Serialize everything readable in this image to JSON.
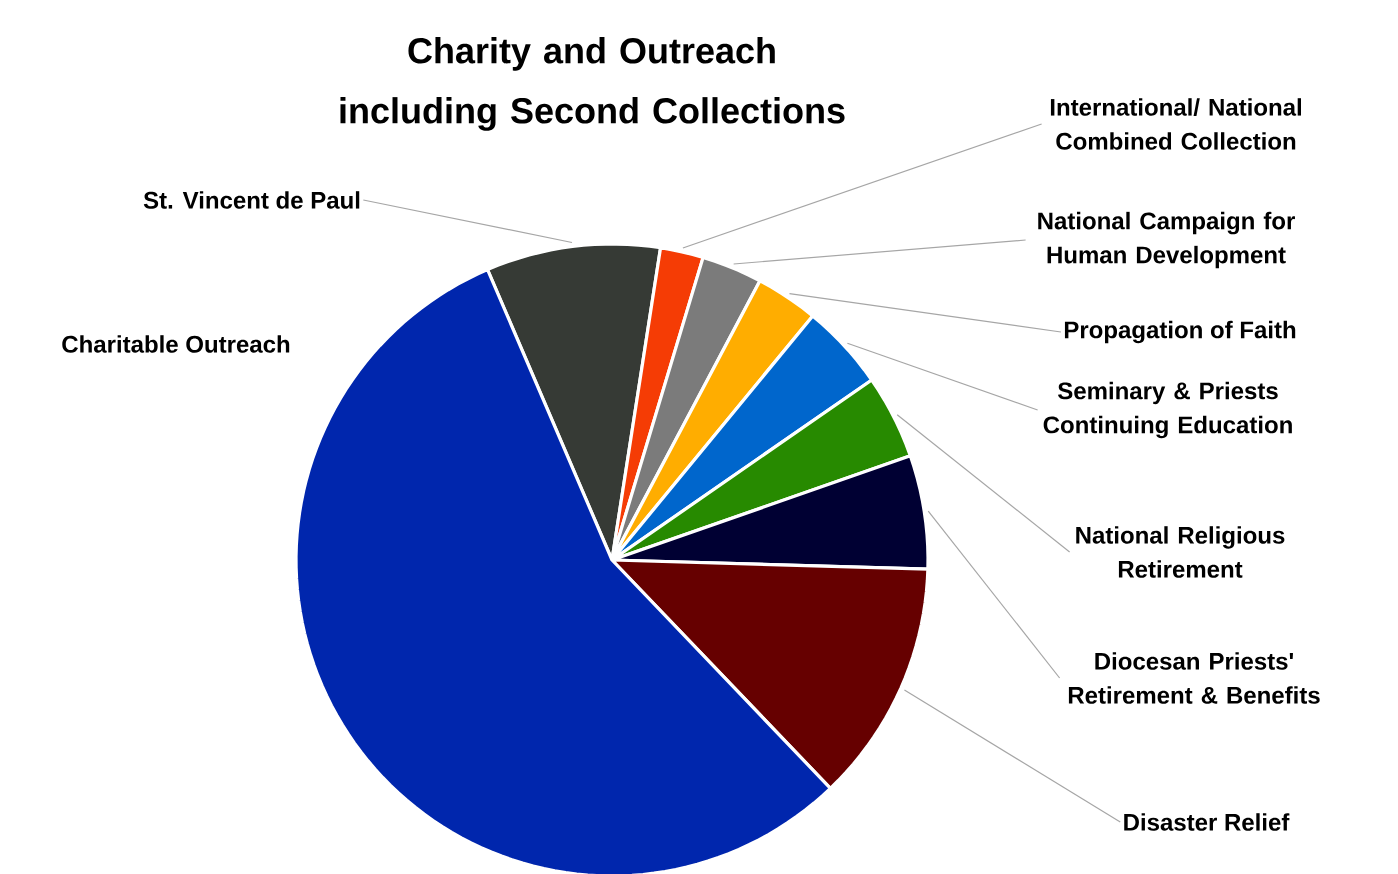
{
  "chart_data": {
    "type": "pie",
    "title": "Charity and Outreach including Second Collections",
    "categories": [
      "St. Vincent de Paul",
      "International/ National Combined Collection",
      "National Campaign for Human Development",
      "Propagation of Faith",
      "Seminary & Priests Continuing Education",
      "National Religious Retirement",
      "Diocesan Priests' Retirement & Benefits",
      "Disaster Relief",
      "Charitable Outreach"
    ],
    "values": [
      8.9,
      2.2,
      3.1,
      3.2,
      4.4,
      4.3,
      5.8,
      12.4,
      55.7
    ],
    "colors": [
      "#363a35",
      "#f53c05",
      "#7b7b7b",
      "#ffad00",
      "#0066cc",
      "#278a00",
      "#000033",
      "#660000",
      "#0026ad"
    ]
  }
}
